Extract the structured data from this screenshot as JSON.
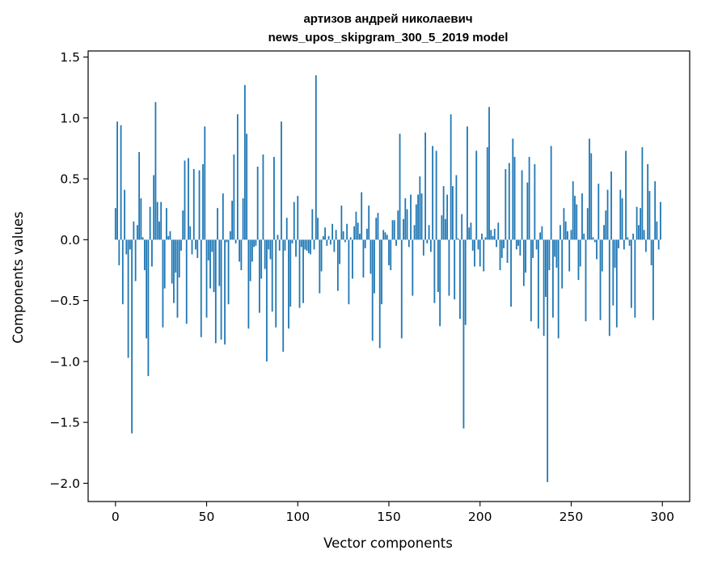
{
  "chart_data": {
    "type": "bar",
    "title_lines": [
      "артизов андрей николаевич",
      "news_upos_skipgram_300_5_2019 model"
    ],
    "xlabel": "Vector components",
    "ylabel": "Components values",
    "xlim": [
      -15,
      315
    ],
    "ylim": [
      -2.15,
      1.55
    ],
    "xticks": [
      0,
      50,
      100,
      150,
      200,
      250,
      300
    ],
    "xtick_labels": [
      "0",
      "50",
      "100",
      "150",
      "200",
      "250",
      "300"
    ],
    "yticks": [
      -2.0,
      -1.5,
      -1.0,
      -0.5,
      0.0,
      0.5,
      1.0,
      1.5
    ],
    "ytick_labels": [
      "−2.0",
      "−1.5",
      "−1.0",
      "−0.5",
      "0.0",
      "0.5",
      "1.0",
      "1.5"
    ],
    "grid": false,
    "bar_color": "#1f77b4",
    "values": [
      0.26,
      0.97,
      -0.21,
      0.94,
      -0.53,
      0.41,
      -0.12,
      -0.97,
      -0.08,
      -1.59,
      0.15,
      -0.34,
      0.12,
      0.72,
      0.34,
      0.02,
      -0.25,
      -0.81,
      -1.12,
      0.27,
      -0.22,
      0.53,
      1.13,
      0.31,
      0.15,
      0.31,
      -0.72,
      -0.4,
      0.26,
      0.03,
      0.07,
      -0.36,
      -0.52,
      -0.27,
      -0.64,
      -0.31,
      -0.09,
      0.24,
      0.65,
      -0.69,
      0.67,
      0.11,
      -0.12,
      0.58,
      -0.08,
      -0.15,
      0.57,
      -0.8,
      0.62,
      0.93,
      -0.64,
      -0.17,
      -0.4,
      -0.1,
      -0.43,
      -0.85,
      0.26,
      -0.38,
      -0.82,
      0.38,
      -0.86,
      -0.02,
      -0.53,
      0.07,
      0.32,
      0.7,
      -0.03,
      1.03,
      -0.18,
      -0.25,
      0.34,
      1.27,
      0.87,
      -0.73,
      -0.34,
      -0.18,
      -0.06,
      -0.05,
      0.6,
      -0.6,
      -0.32,
      0.7,
      -0.24,
      -1.0,
      -0.08,
      -0.16,
      -0.59,
      0.68,
      -0.72,
      0.04,
      -0.09,
      0.97,
      -0.92,
      -0.09,
      0.18,
      -0.73,
      -0.55,
      -0.03,
      0.31,
      -0.14,
      0.36,
      -0.56,
      -0.06,
      -0.52,
      -0.08,
      -0.09,
      -0.11,
      -0.12,
      0.25,
      -0.08,
      1.35,
      0.18,
      -0.44,
      -0.26,
      0.03,
      0.1,
      -0.05,
      0.03,
      -0.04,
      0.13,
      -0.1,
      0.08,
      -0.42,
      -0.2,
      0.28,
      0.07,
      -0.02,
      0.13,
      -0.53,
      0.02,
      -0.32,
      0.11,
      0.23,
      0.14,
      0.05,
      0.39,
      -0.31,
      -0.07,
      0.09,
      0.28,
      -0.28,
      -0.83,
      -0.44,
      0.18,
      0.22,
      -0.89,
      -0.53,
      0.08,
      0.06,
      0.04,
      -0.21,
      -0.25,
      0.16,
      0.16,
      -0.05,
      0.24,
      0.87,
      -0.81,
      0.17,
      0.34,
      0.25,
      -0.06,
      0.37,
      -0.46,
      0.12,
      0.29,
      0.37,
      0.52,
      0.38,
      -0.13,
      0.88,
      -0.03,
      0.12,
      -0.1,
      0.77,
      -0.52,
      0.73,
      -0.43,
      -0.71,
      0.2,
      0.44,
      0.17,
      0.37,
      -0.46,
      1.03,
      0.44,
      -0.49,
      0.53,
      0.01,
      -0.65,
      0.21,
      -1.55,
      -0.7,
      0.93,
      0.1,
      0.14,
      -0.09,
      -0.22,
      0.73,
      -0.08,
      -0.22,
      0.05,
      -0.26,
      0.02,
      0.76,
      1.09,
      0.08,
      0.03,
      0.09,
      -0.06,
      0.14,
      -0.25,
      -0.15,
      -0.07,
      0.58,
      -0.19,
      0.63,
      -0.55,
      0.83,
      0.68,
      -0.08,
      -0.05,
      -0.13,
      0.57,
      -0.38,
      -0.27,
      0.47,
      0.68,
      -0.67,
      -0.15,
      0.62,
      -0.08,
      -0.73,
      0.06,
      0.11,
      -0.79,
      -0.47,
      -1.99,
      -0.25,
      0.77,
      -0.64,
      -0.14,
      -0.23,
      -0.81,
      0.12,
      -0.4,
      0.26,
      0.15,
      0.07,
      -0.26,
      0.08,
      0.48,
      0.36,
      0.29,
      -0.33,
      -0.22,
      0.38,
      0.05,
      -0.67,
      0.26,
      0.83,
      0.71,
      0.02,
      -0.02,
      -0.16,
      0.46,
      -0.66,
      -0.26,
      0.12,
      0.24,
      0.41,
      -0.79,
      0.56,
      -0.54,
      -0.23,
      -0.72,
      -0.07,
      0.41,
      0.34,
      -0.08,
      0.73,
      0.02,
      -0.05,
      -0.56,
      0.05,
      -0.64,
      0.27,
      0.12,
      0.26,
      0.76,
      0.08,
      -0.1,
      0.62,
      0.4,
      -0.21,
      -0.66,
      0.48,
      0.15,
      -0.08,
      0.31
    ]
  }
}
